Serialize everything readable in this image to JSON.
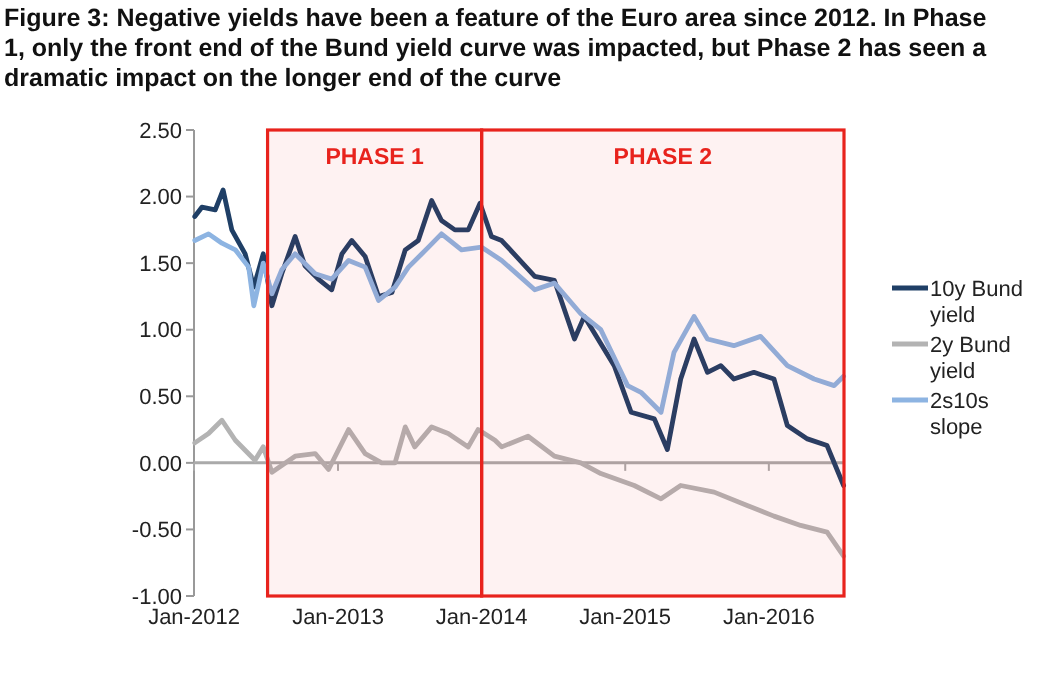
{
  "chart_data": {
    "type": "line",
    "title": "Figure 3: Negative yields have been a feature of the Euro area since 2012. In Phase 1, only the front end of the Bund yield curve was impacted, but Phase 2 has seen a dramatic impact on the longer end of the curve",
    "xlim": [
      "2012-01-01",
      "2016-07-10"
    ],
    "xticks": [
      {
        "value": "2012-01-01",
        "label": "Jan-2012"
      },
      {
        "value": "2013-01-01",
        "label": "Jan-2013"
      },
      {
        "value": "2014-01-01",
        "label": "Jan-2014"
      },
      {
        "value": "2015-01-01",
        "label": "Jan-2015"
      },
      {
        "value": "2016-01-01",
        "label": "Jan-2016"
      }
    ],
    "ylim": [
      -1,
      2.5
    ],
    "yticks": [
      {
        "value": 2.5,
        "label": "2.50"
      },
      {
        "value": 2,
        "label": "2.00"
      },
      {
        "value": 1.5,
        "label": "1.50"
      },
      {
        "value": 1,
        "label": "1.00"
      },
      {
        "value": 0.5,
        "label": "0.50"
      },
      {
        "value": 0,
        "label": "0.00"
      },
      {
        "value": -0.5,
        "label": "-0.50"
      },
      {
        "value": -1,
        "label": "-1.00"
      }
    ],
    "legend": "right",
    "marker": "none",
    "line_style": "solid",
    "bands": [
      {
        "axis": "x",
        "from": "2012-07-06",
        "to": "2014-01-01",
        "label": "PHASE 1",
        "color": "#e8231d"
      },
      {
        "axis": "x",
        "from": "2014-01-01",
        "to": "2016-07-10",
        "label": "PHASE 2",
        "color": "#e8231d"
      }
    ],
    "series": [
      {
        "name": "10y Bund yield",
        "color": "#1f3f66",
        "x": [
          "2012-01-03",
          "2012-01-21",
          "2012-02-24",
          "2012-03-15",
          "2012-04-06",
          "2012-05-10",
          "2012-06-01",
          "2012-06-25",
          "2012-07-17",
          "2012-08-11",
          "2012-09-14",
          "2012-10-09",
          "2012-11-12",
          "2012-12-16",
          "2013-01-11",
          "2013-02-05",
          "2013-03-11",
          "2013-04-14",
          "2013-05-18",
          "2013-06-21",
          "2013-07-24",
          "2013-08-27",
          "2013-09-21",
          "2013-10-25",
          "2013-11-28",
          "2013-12-28",
          "2014-01-26",
          "2014-02-21",
          "2014-05-16",
          "2014-07-05",
          "2014-08-25",
          "2014-09-19",
          "2014-12-04",
          "2015-01-16",
          "2015-03-16",
          "2015-04-18",
          "2015-05-22",
          "2015-06-25",
          "2015-07-29",
          "2015-09-01",
          "2015-10-04",
          "2015-11-24",
          "2016-01-14",
          "2016-02-17",
          "2016-04-08",
          "2016-05-28",
          "2016-07-09"
        ],
        "values": [
          1.85,
          1.92,
          1.9,
          2.05,
          1.75,
          1.57,
          1.32,
          1.57,
          1.18,
          1.42,
          1.7,
          1.48,
          1.38,
          1.3,
          1.57,
          1.67,
          1.55,
          1.25,
          1.28,
          1.6,
          1.67,
          1.97,
          1.82,
          1.75,
          1.75,
          1.95,
          1.7,
          1.67,
          1.4,
          1.37,
          0.93,
          1.1,
          0.73,
          0.38,
          0.33,
          0.1,
          0.63,
          0.93,
          0.68,
          0.73,
          0.63,
          0.68,
          0.63,
          0.28,
          0.18,
          0.13,
          -0.17
        ]
      },
      {
        "name": "2y Bund yield",
        "color": "#b3b3b3",
        "x": [
          "2012-01-03",
          "2012-02-07",
          "2012-03-12",
          "2012-04-15",
          "2012-06-04",
          "2012-06-25",
          "2012-07-17",
          "2012-09-14",
          "2012-11-04",
          "2012-12-08",
          "2013-01-28",
          "2013-03-11",
          "2013-04-22",
          "2013-05-26",
          "2013-06-21",
          "2013-07-15",
          "2013-08-27",
          "2013-10-08",
          "2013-11-28",
          "2013-12-23",
          "2014-02-04",
          "2014-02-21",
          "2014-04-29",
          "2014-07-05",
          "2014-09-10",
          "2014-10-31",
          "2015-01-24",
          "2015-04-02",
          "2015-05-22",
          "2015-08-15",
          "2015-11-07",
          "2016-01-14",
          "2016-03-22",
          "2016-05-28",
          "2016-07-09"
        ],
        "values": [
          0.15,
          0.22,
          0.32,
          0.17,
          0.02,
          0.12,
          -0.07,
          0.05,
          0.07,
          -0.05,
          0.25,
          0.07,
          0,
          0,
          0.27,
          0.12,
          0.27,
          0.22,
          0.12,
          0.25,
          0.17,
          0.12,
          0.2,
          0.05,
          0,
          -0.08,
          -0.17,
          -0.27,
          -0.17,
          -0.22,
          -0.32,
          -0.4,
          -0.47,
          -0.52,
          -0.7
        ]
      },
      {
        "name": "2s10s slope",
        "color": "#8db4e2",
        "x": [
          "2012-01-03",
          "2012-02-07",
          "2012-03-12",
          "2012-04-15",
          "2012-05-19",
          "2012-06-01",
          "2012-06-25",
          "2012-07-17",
          "2012-08-11",
          "2012-09-14",
          "2012-11-04",
          "2012-12-16",
          "2013-01-28",
          "2013-03-11",
          "2013-04-14",
          "2013-05-26",
          "2013-06-29",
          "2013-08-19",
          "2013-09-21",
          "2013-11-11",
          "2014-01-01",
          "2014-02-21",
          "2014-05-16",
          "2014-07-05",
          "2014-09-10",
          "2014-10-31",
          "2015-01-07",
          "2015-02-10",
          "2015-04-02",
          "2015-05-05",
          "2015-06-25",
          "2015-07-29",
          "2015-10-04",
          "2015-12-11",
          "2016-02-17",
          "2016-04-25",
          "2016-06-15",
          "2016-07-09"
        ],
        "values": [
          1.67,
          1.72,
          1.65,
          1.6,
          1.47,
          1.18,
          1.5,
          1.27,
          1.45,
          1.57,
          1.42,
          1.38,
          1.52,
          1.47,
          1.22,
          1.32,
          1.47,
          1.62,
          1.72,
          1.6,
          1.62,
          1.52,
          1.3,
          1.35,
          1.12,
          1,
          0.58,
          0.53,
          0.38,
          0.83,
          1.1,
          0.93,
          0.88,
          0.95,
          0.73,
          0.63,
          0.58,
          0.65
        ]
      }
    ]
  }
}
